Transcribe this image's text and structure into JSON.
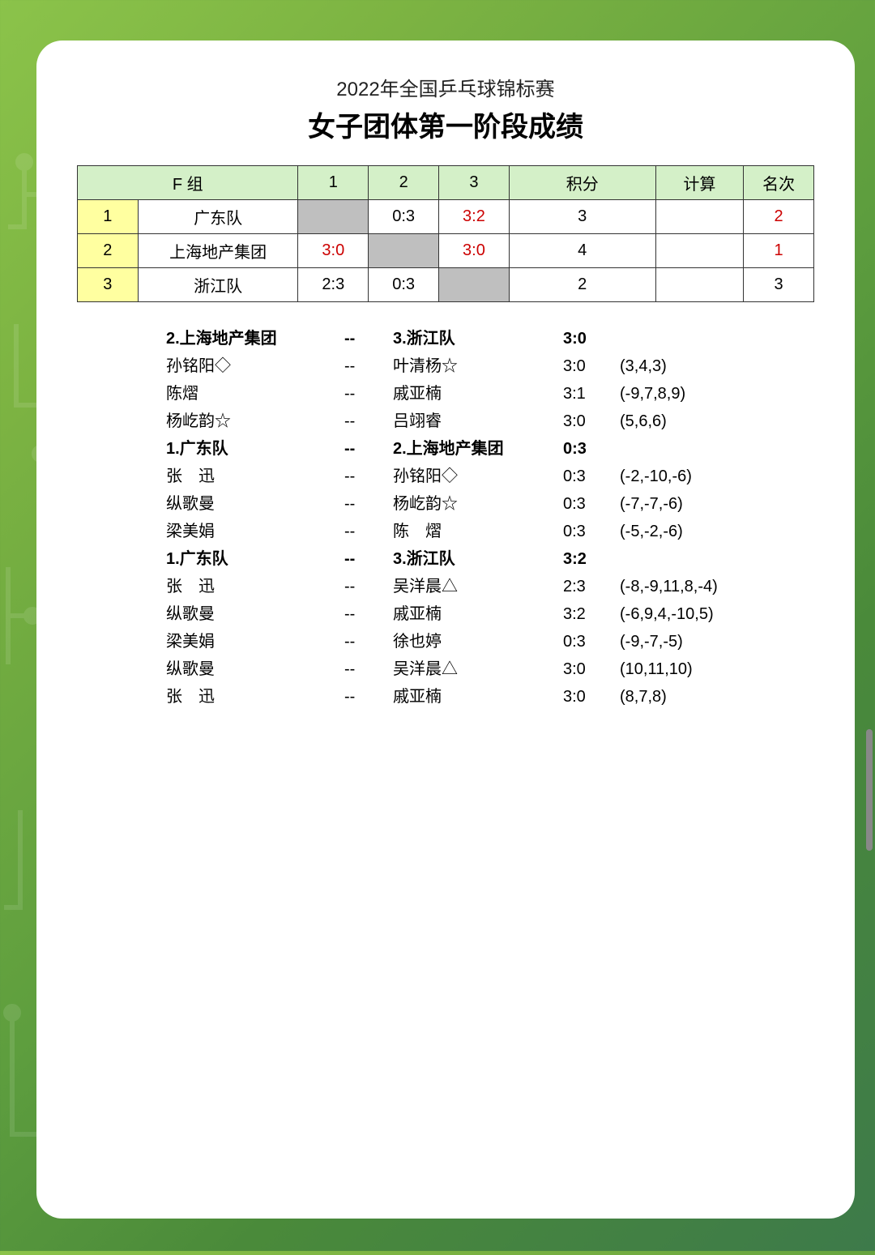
{
  "header": {
    "subtitle": "2022年全国乒乓球锦标赛",
    "title": "女子团体第一阶段成绩"
  },
  "standings": {
    "headers": {
      "group": "F 组",
      "c1": "1",
      "c2": "2",
      "c3": "3",
      "points": "积分",
      "calc": "计算",
      "rank": "名次"
    },
    "rows": [
      {
        "idx": "1",
        "team": "广东队",
        "c1": "",
        "c2": "0:3",
        "c3": "3:2",
        "pts": "3",
        "calc": "",
        "rank": "2",
        "c2red": false,
        "c3red": true,
        "rankred": true
      },
      {
        "idx": "2",
        "team": "上海地产集团",
        "c1": "3:0",
        "c2": "",
        "c3": "3:0",
        "pts": "4",
        "calc": "",
        "rank": "1",
        "c1red": true,
        "c3red": true,
        "rankred": true
      },
      {
        "idx": "3",
        "team": "浙江队",
        "c1": "2:3",
        "c2": "0:3",
        "c3": "",
        "pts": "2",
        "calc": "",
        "rank": "3",
        "c1red": false,
        "c2red": false,
        "rankred": false
      }
    ]
  },
  "matches": [
    {
      "h": true,
      "p1": "2.上海地产集团",
      "sep": "--",
      "p2": "3.浙江队",
      "sc": "3:0",
      "det": ""
    },
    {
      "p1": "孙铭阳◇",
      "sep": "--",
      "p2": "叶清杨☆",
      "sc": "3:0",
      "det": "(3,4,3)"
    },
    {
      "p1": "陈熠",
      "sep": "--",
      "p2": "戚亚楠",
      "sc": "3:1",
      "det": "(-9,7,8,9)"
    },
    {
      "p1": "杨屹韵☆",
      "sep": "--",
      "p2": "吕翊睿",
      "sc": "3:0",
      "det": "(5,6,6)"
    },
    {
      "h": true,
      "p1": "1.广东队",
      "sep": "--",
      "p2": "2.上海地产集团",
      "sc": "0:3",
      "det": ""
    },
    {
      "p1": "张　迅",
      "sep": "--",
      "p2": "孙铭阳◇",
      "sc": "0:3",
      "det": "(-2,-10,-6)"
    },
    {
      "p1": "纵歌曼",
      "sep": "--",
      "p2": "杨屹韵☆",
      "sc": "0:3",
      "det": "(-7,-7,-6)"
    },
    {
      "p1": "梁美娟",
      "sep": "--",
      "p2": "陈　熠",
      "sc": "0:3",
      "det": "(-5,-2,-6)"
    },
    {
      "h": true,
      "p1": "1.广东队",
      "sep": "--",
      "p2": "3.浙江队",
      "sc": "3:2",
      "det": ""
    },
    {
      "p1": "张　迅",
      "sep": "--",
      "p2": "吴洋晨△",
      "sc": "2:3",
      "det": "(-8,-9,11,8,-4)"
    },
    {
      "p1": "纵歌曼",
      "sep": "--",
      "p2": "戚亚楠",
      "sc": "3:2",
      "det": "(-6,9,4,-10,5)"
    },
    {
      "p1": "梁美娟",
      "sep": "--",
      "p2": "徐也婷",
      "sc": "0:3",
      "det": "(-9,-7,-5)"
    },
    {
      "p1": "纵歌曼",
      "sep": "--",
      "p2": "吴洋晨△",
      "sc": "3:0",
      "det": "(10,11,10)"
    },
    {
      "p1": "张　迅",
      "sep": "--",
      "p2": "戚亚楠",
      "sc": "3:0",
      "det": "(8,7,8)"
    }
  ],
  "colors": {
    "header_bg": "#d4f0c8",
    "idx_bg": "#ffffa0",
    "diag_bg": "#bfbfbf",
    "red": "#c00",
    "border": "#333"
  }
}
